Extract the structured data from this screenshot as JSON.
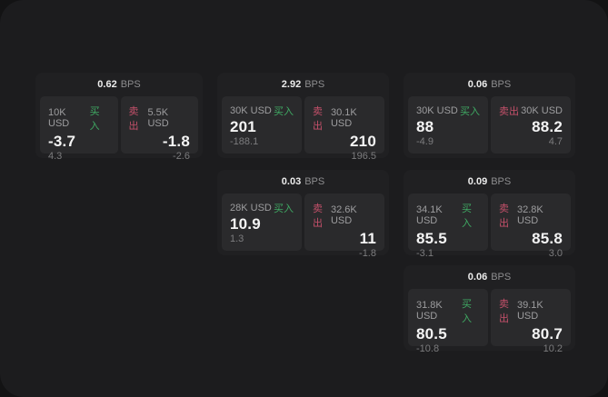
{
  "labels": {
    "bps_unit": "BPS",
    "buy": "买入",
    "sell": "卖出"
  },
  "colors": {
    "buy_green": "#3fa963",
    "sell_red": "#c4506a",
    "window_bg": "#1c1c1e",
    "card_bg": "#202022",
    "panel_bg": "#2a2a2c"
  },
  "cards": [
    {
      "bps": "0.62",
      "buy": {
        "amount": "10K USD",
        "price": "-3.7",
        "change": "4.3"
      },
      "sell": {
        "amount": "5.5K USD",
        "price": "-1.8",
        "change": "-2.6"
      }
    },
    {
      "bps": "2.92",
      "buy": {
        "amount": "30K USD",
        "price": "201",
        "change": "-188.1"
      },
      "sell": {
        "amount": "30.1K USD",
        "price": "210",
        "change": "196.5"
      }
    },
    {
      "bps": "0.06",
      "buy": {
        "amount": "30K USD",
        "price": "88",
        "change": "-4.9"
      },
      "sell": {
        "amount": "30K USD",
        "price": "88.2",
        "change": "4.7"
      }
    },
    {
      "bps": "0.03",
      "buy": {
        "amount": "28K USD",
        "price": "10.9",
        "change": "1.3"
      },
      "sell": {
        "amount": "32.6K USD",
        "price": "11",
        "change": "-1.8"
      }
    },
    {
      "bps": "0.09",
      "buy": {
        "amount": "34.1K USD",
        "price": "85.5",
        "change": "-3.1"
      },
      "sell": {
        "amount": "32.8K USD",
        "price": "85.8",
        "change": "3.0"
      }
    },
    {
      "bps": "0.06",
      "buy": {
        "amount": "31.8K USD",
        "price": "80.5",
        "change": "-10.8"
      },
      "sell": {
        "amount": "39.1K USD",
        "price": "80.7",
        "change": "10.2"
      }
    }
  ]
}
